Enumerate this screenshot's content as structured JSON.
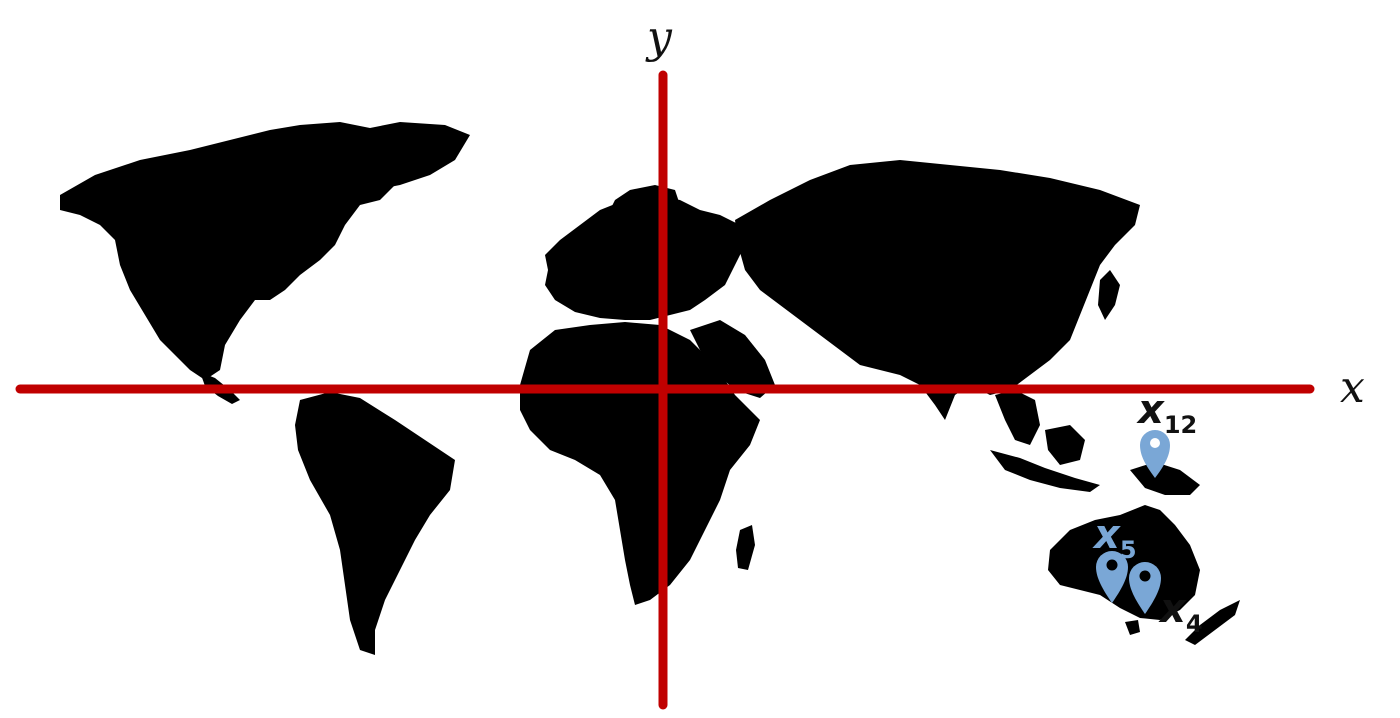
{
  "axes": {
    "x_label": "x",
    "y_label": "y",
    "color": "#c00000"
  },
  "land_color": "#000000",
  "markers": [
    {
      "id": "x12",
      "label_base": "x",
      "label_sub": "12",
      "label_color": "#111111",
      "pin_color": "#7aa7d6"
    },
    {
      "id": "x5",
      "label_base": "x",
      "label_sub": "5",
      "label_color": "#7aa7d6",
      "pin_color": "#7aa7d6"
    },
    {
      "id": "x4",
      "label_base": "x",
      "label_sub": "4",
      "label_color": "#111111",
      "pin_color": "#7aa7d6"
    }
  ]
}
